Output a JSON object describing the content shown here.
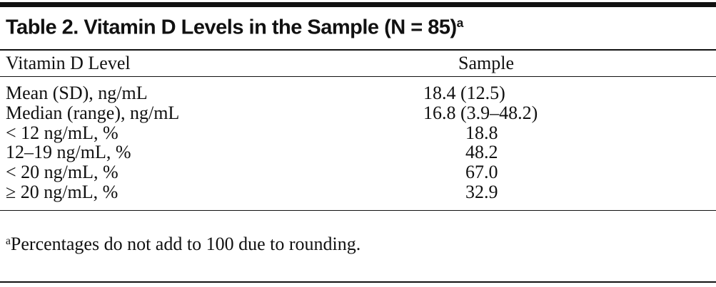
{
  "table": {
    "title": "Table 2. Vitamin D Levels in the Sample (N = 85)",
    "title_note": "a",
    "header": [
      "Vitamin D Level",
      "Sample"
    ],
    "rows": [
      [
        "Mean (SD), ng/mL",
        "18.4 (12.5)"
      ],
      [
        "Median (range), ng/mL",
        "16.8 (3.9–48.2)"
      ],
      [
        "< 12 ng/mL, %",
        "18.8"
      ],
      [
        "12–19 ng/mL, %",
        "48.2"
      ],
      [
        "< 20 ng/mL, %",
        "67.0"
      ],
      [
        "≥ 20 ng/mL, %",
        "32.9"
      ]
    ],
    "footnote": {
      "marker": "a",
      "text": "Percentages do not add to 100 due to rounding."
    }
  }
}
